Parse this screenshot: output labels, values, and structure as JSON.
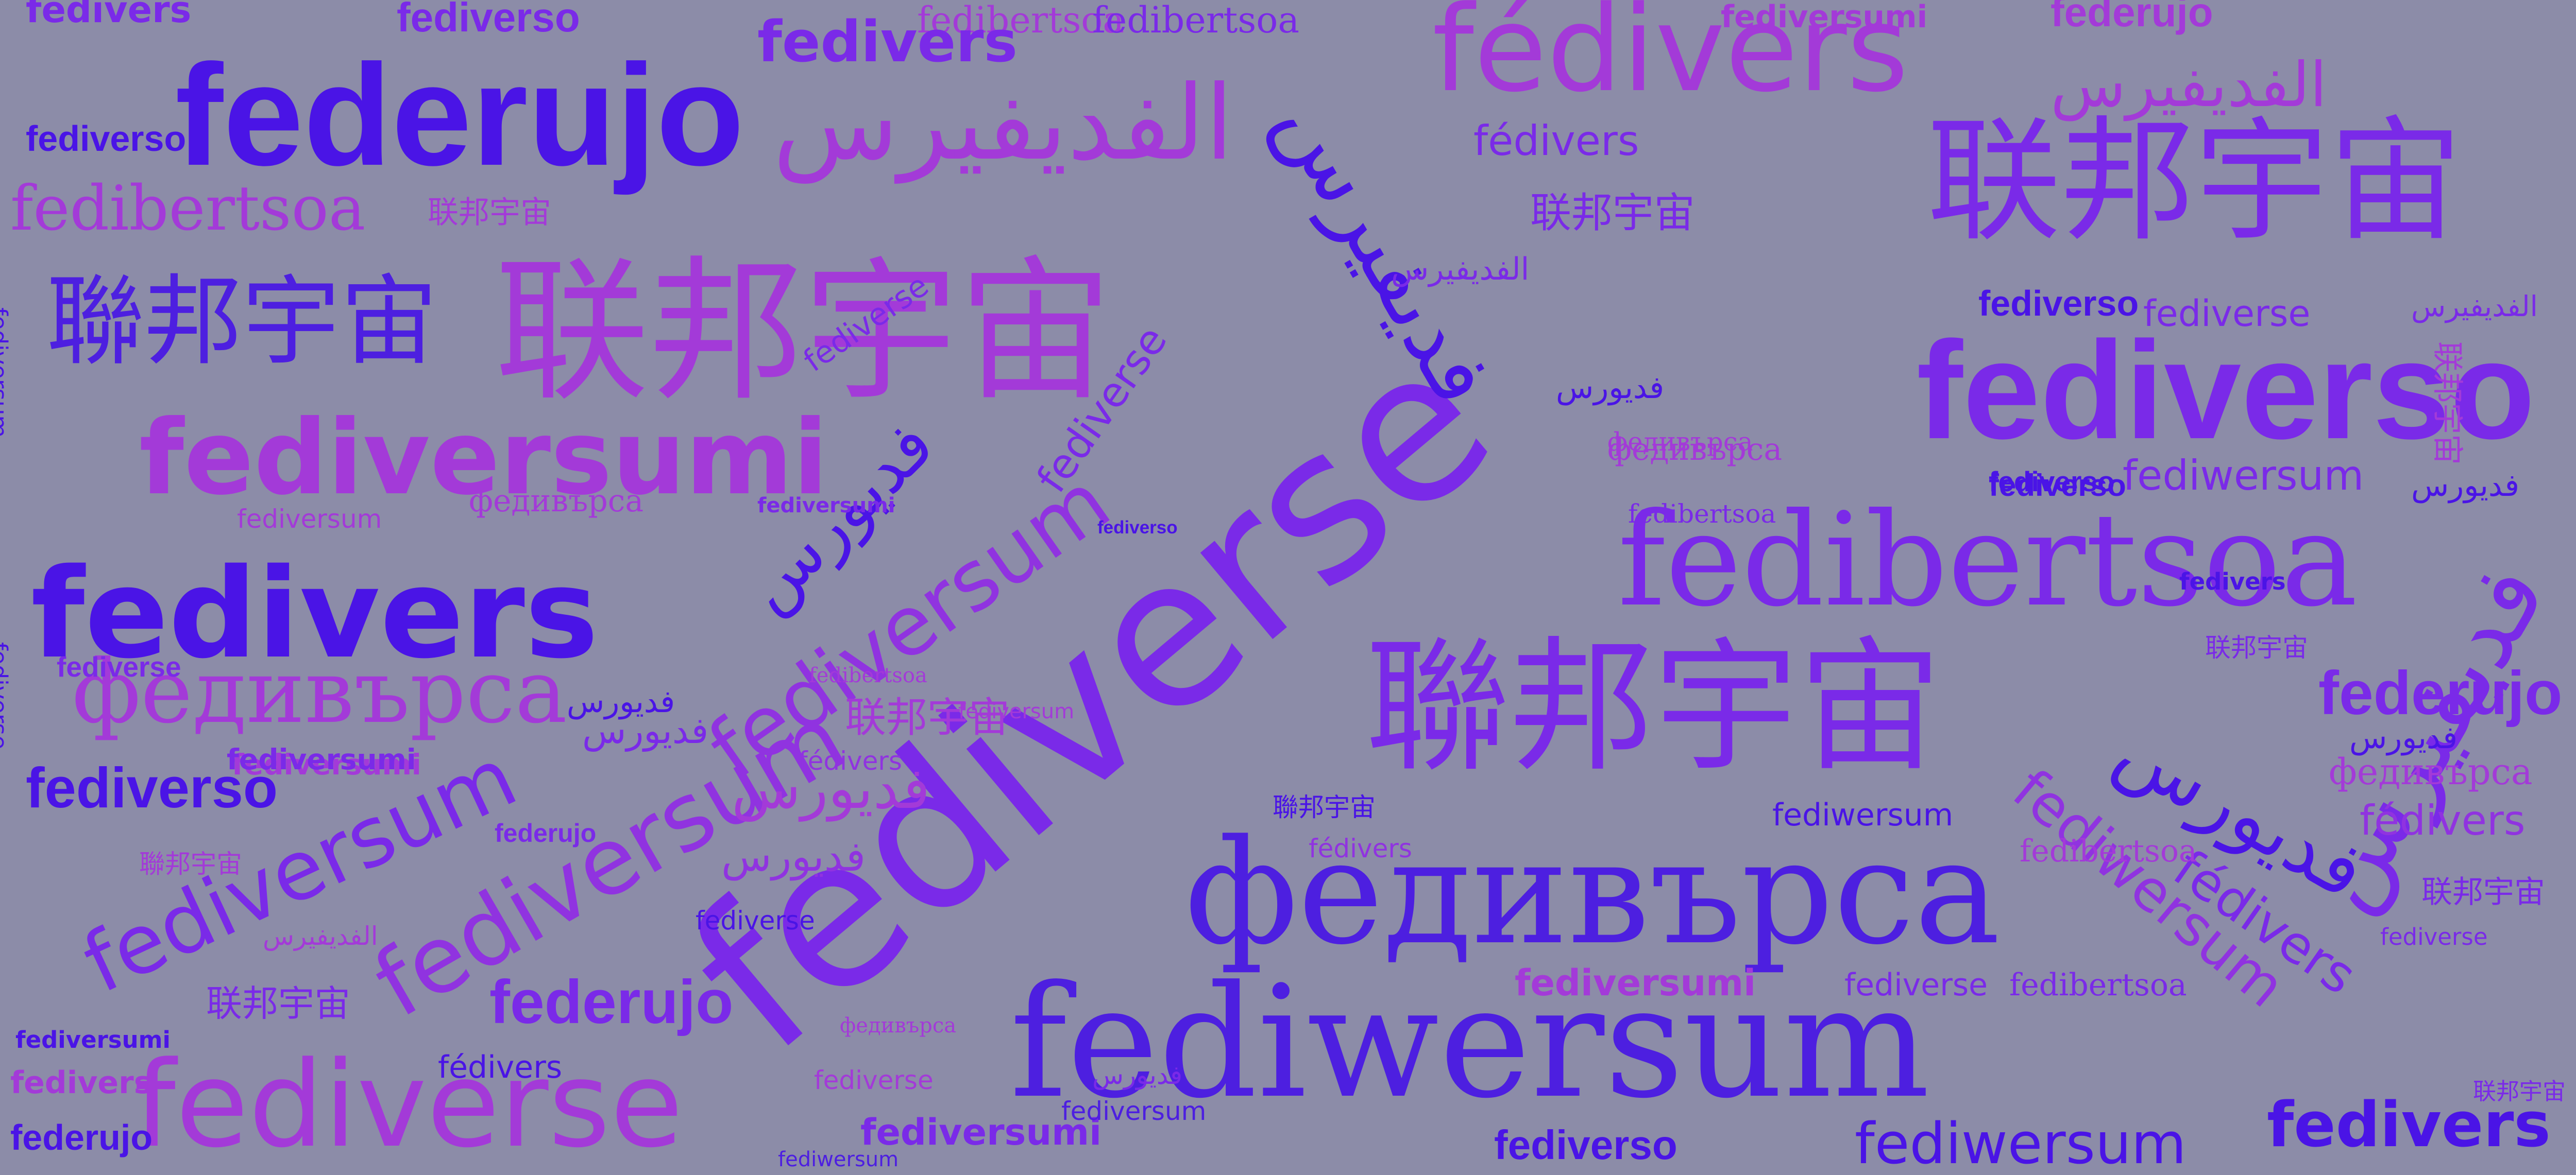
{
  "background": "#8c8ca8",
  "palette": {
    "indigo": "#4a14e6",
    "blue": "#4d1fe0",
    "violet": "#7a2ae8",
    "purple": "#9033e0",
    "magenta": "#a33ad8",
    "pink": "#b33ed0"
  },
  "words": [
    {
      "text": "fediverse"
    },
    {
      "text": "fediwersum"
    },
    {
      "text": "联邦宇宙"
    },
    {
      "text": "федивърса"
    },
    {
      "text": "fedibertsoa"
    },
    {
      "text": "fediverso"
    },
    {
      "text": "fedivers"
    },
    {
      "text": "fediversumi"
    },
    {
      "text": "federujo"
    },
    {
      "text": "fédivers"
    },
    {
      "text": "fediversum"
    },
    {
      "text": "聯邦宇宙"
    },
    {
      "text": "الفديفيرس"
    },
    {
      "text": "فديورس"
    },
    {
      "text": "فديفيرس"
    }
  ]
}
